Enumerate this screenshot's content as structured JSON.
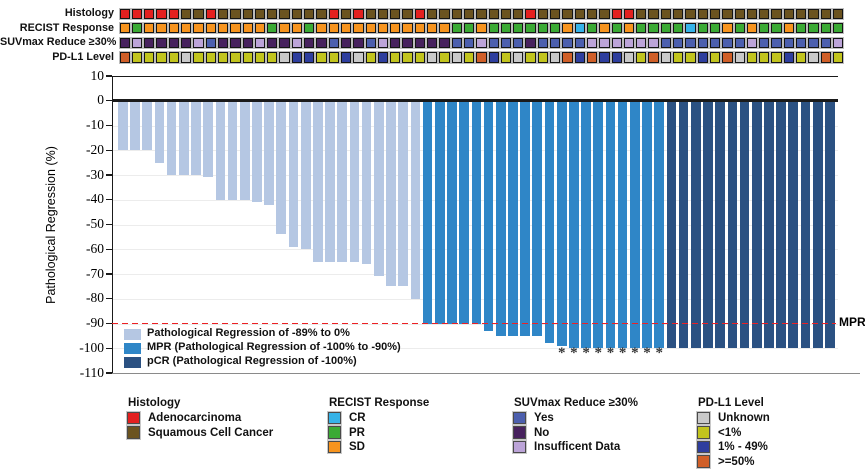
{
  "annotations": {
    "rows": [
      {
        "label": "Histology",
        "key": "histology",
        "palette": {
          "A": "#E3201F",
          "S": "#6B531F"
        },
        "cells": [
          "A",
          "A",
          "A",
          "A",
          "A",
          "S",
          "S",
          "A",
          "S",
          "S",
          "S",
          "S",
          "S",
          "S",
          "S",
          "S",
          "S",
          "A",
          "S",
          "A",
          "S",
          "S",
          "S",
          "S",
          "A",
          "S",
          "S",
          "S",
          "S",
          "S",
          "S",
          "S",
          "S",
          "A",
          "S",
          "S",
          "S",
          "S",
          "S",
          "S",
          "A",
          "A",
          "S",
          "S",
          "S",
          "S",
          "S",
          "S",
          "S",
          "S",
          "S",
          "S",
          "S",
          "S",
          "S",
          "S",
          "S",
          "S",
          "S"
        ]
      },
      {
        "label": "RECIST Response",
        "key": "recist_response",
        "palette": {
          "C": "#36B3E8",
          "G": "#3BAA34",
          "O": "#F7941E"
        },
        "cells": [
          "O",
          "G",
          "O",
          "O",
          "O",
          "O",
          "O",
          "O",
          "O",
          "O",
          "O",
          "O",
          "G",
          "O",
          "O",
          "G",
          "O",
          "O",
          "O",
          "O",
          "O",
          "O",
          "O",
          "O",
          "O",
          "O",
          "O",
          "G",
          "G",
          "O",
          "G",
          "G",
          "G",
          "G",
          "G",
          "G",
          "O",
          "C",
          "G",
          "O",
          "G",
          "O",
          "G",
          "G",
          "G",
          "G",
          "C",
          "G",
          "G",
          "O",
          "G",
          "O",
          "G",
          "G",
          "O",
          "G",
          "G",
          "G",
          "G"
        ]
      },
      {
        "label": "SUVmax Reduce ≥30%",
        "key": "suvmax_reduce",
        "palette": {
          "Y": "#4C5FAE",
          "N": "#47215E",
          "I": "#BCA4D8"
        },
        "cells": [
          "N",
          "I",
          "N",
          "N",
          "N",
          "N",
          "I",
          "Y",
          "N",
          "N",
          "N",
          "I",
          "N",
          "N",
          "I",
          "N",
          "N",
          "Y",
          "N",
          "N",
          "Y",
          "I",
          "N",
          "N",
          "N",
          "N",
          "N",
          "Y",
          "Y",
          "I",
          "Y",
          "Y",
          "Y",
          "N",
          "Y",
          "Y",
          "Y",
          "Y",
          "I",
          "I",
          "I",
          "I",
          "I",
          "I",
          "Y",
          "Y",
          "Y",
          "Y",
          "Y",
          "Y",
          "Y",
          "I",
          "Y",
          "Y",
          "Y",
          "Y",
          "Y",
          "Y",
          "I"
        ]
      },
      {
        "label": "PD-L1 Level",
        "key": "pdl1_level",
        "palette": {
          "U": "#C9C9C9",
          "L": "#C2C41E",
          "B": "#2E3E9E",
          "H": "#D05F28"
        },
        "cells": [
          "H",
          "L",
          "L",
          "L",
          "L",
          "U",
          "L",
          "L",
          "L",
          "L",
          "L",
          "L",
          "L",
          "U",
          "B",
          "B",
          "L",
          "L",
          "B",
          "U",
          "L",
          "B",
          "L",
          "L",
          "L",
          "U",
          "L",
          "U",
          "L",
          "H",
          "B",
          "L",
          "U",
          "L",
          "L",
          "U",
          "H",
          "B",
          "H",
          "B",
          "B",
          "U",
          "L",
          "H",
          "U",
          "L",
          "L",
          "B",
          "L",
          "H",
          "U",
          "L",
          "L",
          "L",
          "B",
          "L",
          "U",
          "H",
          "L"
        ]
      }
    ]
  },
  "chart_data": {
    "type": "bar",
    "title": "",
    "xlabel": "",
    "ylabel": "Pathological Regression (%)",
    "ylim": [
      -110,
      10
    ],
    "yticks": [
      10,
      0,
      -10,
      -20,
      -30,
      -40,
      -50,
      -60,
      -70,
      -80,
      -90,
      -100,
      -110
    ],
    "grid": true,
    "values": [
      -20,
      -20,
      -20,
      -25,
      -30,
      -30,
      -30,
      -31,
      -40,
      -40,
      -40,
      -41,
      -42,
      -54,
      -59,
      -60,
      -65,
      -65,
      -65,
      -65,
      -66,
      -71,
      -75,
      -75,
      -80,
      -90,
      -90,
      -90,
      -90,
      -90,
      -93,
      -95,
      -95,
      -95,
      -95,
      -98,
      -99,
      -100,
      -100,
      -100,
      -100,
      -100,
      -100,
      -100,
      -100,
      -100,
      -100,
      -100,
      -100,
      -100,
      -100,
      -100,
      -100,
      -100,
      -100,
      -100,
      -100,
      -100,
      -100
    ],
    "segments": [
      {
        "name": "Pathological Regression of -89% to 0%",
        "color": "#B5C7E3",
        "from": 1,
        "to": 25
      },
      {
        "name": "MPR (Pathological Regression of -100% to -90%)",
        "color": "#2F86C7",
        "from": 26,
        "to": 45
      },
      {
        "name": "pCR (Pathological Regression of -100%)",
        "color": "#2B5182",
        "from": 46,
        "to": 59
      }
    ],
    "reference_line": {
      "value": -90,
      "label": "MPR",
      "color": "#EC2024",
      "style": "dashed"
    },
    "asterisk_bars": [
      37,
      38,
      39,
      40,
      41,
      42,
      43,
      44,
      45
    ],
    "legend_position": "inside bottom-left"
  },
  "bottom_legend": {
    "groups": [
      {
        "title": "Histology",
        "items": [
          {
            "label": "Adenocarcinoma",
            "color": "#E3201F"
          },
          {
            "label": "Squamous Cell Cancer",
            "color": "#6B531F"
          }
        ]
      },
      {
        "title": "RECIST Response",
        "items": [
          {
            "label": "CR",
            "color": "#36B3E8"
          },
          {
            "label": "PR",
            "color": "#3BAA34"
          },
          {
            "label": "SD",
            "color": "#F7941E"
          }
        ]
      },
      {
        "title": "SUVmax Reduce ≥30%",
        "items": [
          {
            "label": "Yes",
            "color": "#4C5FAE"
          },
          {
            "label": "No",
            "color": "#47215E"
          },
          {
            "label": "Insufficent Data",
            "color": "#BCA4D8"
          }
        ]
      },
      {
        "title": "PD-L1 Level",
        "items": [
          {
            "label": "Unknown",
            "color": "#C9C9C9"
          },
          {
            "label": "<1%",
            "color": "#C2C41E"
          },
          {
            "label": "1% - 49%",
            "color": "#2E3E9E"
          },
          {
            "label": ">=50%",
            "color": "#D05F28"
          }
        ]
      }
    ]
  }
}
